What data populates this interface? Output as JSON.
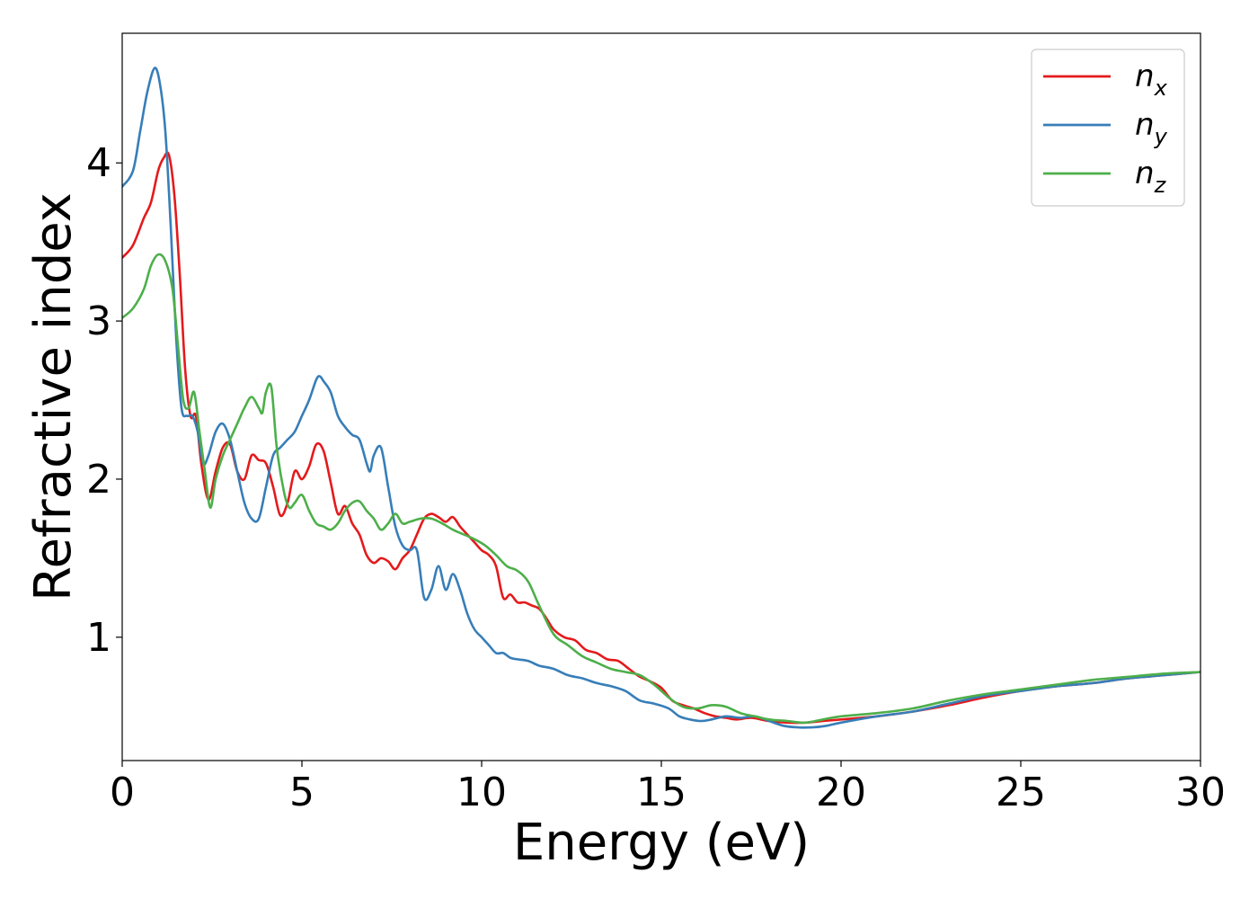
{
  "chart_data": {
    "type": "line",
    "title": "",
    "xlabel": "Energy (eV)",
    "ylabel": "Refractive index",
    "xlim": [
      0,
      30
    ],
    "ylim": [
      0.22,
      4.82
    ],
    "xticks": [
      0,
      5,
      10,
      15,
      20,
      25,
      30
    ],
    "yticks": [
      1,
      2,
      3,
      4
    ],
    "grid": false,
    "legend_position": "top-right",
    "series": [
      {
        "name": "n_x",
        "label_base": "n",
        "label_sub": "x",
        "color": "#e41a1c",
        "x": [
          0,
          0.3,
          0.6,
          0.8,
          1.0,
          1.15,
          1.3,
          1.45,
          1.6,
          1.75,
          1.9,
          2.05,
          2.2,
          2.4,
          2.6,
          2.8,
          3.0,
          3.2,
          3.4,
          3.6,
          3.8,
          4.0,
          4.2,
          4.4,
          4.6,
          4.8,
          5.0,
          5.2,
          5.4,
          5.6,
          5.8,
          6.0,
          6.2,
          6.4,
          6.6,
          6.8,
          7.0,
          7.2,
          7.4,
          7.6,
          7.8,
          8.0,
          8.2,
          8.4,
          8.6,
          8.8,
          9.0,
          9.2,
          9.4,
          9.6,
          9.8,
          10.0,
          10.2,
          10.4,
          10.6,
          10.8,
          11.0,
          11.2,
          11.4,
          11.6,
          11.8,
          12.0,
          12.3,
          12.6,
          12.9,
          13.2,
          13.5,
          13.8,
          14.1,
          14.4,
          14.7,
          15.0,
          15.3,
          15.6,
          15.9,
          16.2,
          16.5,
          16.8,
          17.1,
          17.5,
          18.0,
          18.5,
          19.0,
          19.5,
          20.0,
          21.0,
          22.0,
          23.0,
          24.0,
          25.0,
          26.0,
          27.0,
          28.0,
          29.0,
          30.0
        ],
        "y": [
          3.4,
          3.48,
          3.65,
          3.75,
          3.95,
          4.03,
          4.05,
          3.8,
          3.3,
          2.7,
          2.4,
          2.4,
          2.1,
          1.87,
          2.05,
          2.2,
          2.22,
          2.05,
          2.0,
          2.15,
          2.12,
          2.1,
          1.95,
          1.77,
          1.85,
          2.05,
          2.0,
          2.08,
          2.22,
          2.18,
          1.98,
          1.78,
          1.83,
          1.72,
          1.65,
          1.52,
          1.47,
          1.5,
          1.48,
          1.43,
          1.5,
          1.55,
          1.65,
          1.75,
          1.78,
          1.76,
          1.73,
          1.76,
          1.7,
          1.65,
          1.6,
          1.55,
          1.52,
          1.45,
          1.25,
          1.27,
          1.22,
          1.22,
          1.2,
          1.18,
          1.12,
          1.05,
          1.0,
          0.98,
          0.92,
          0.9,
          0.86,
          0.85,
          0.8,
          0.75,
          0.72,
          0.68,
          0.6,
          0.57,
          0.55,
          0.52,
          0.5,
          0.49,
          0.48,
          0.49,
          0.47,
          0.46,
          0.46,
          0.47,
          0.48,
          0.5,
          0.53,
          0.57,
          0.62,
          0.66,
          0.69,
          0.71,
          0.74,
          0.76,
          0.78
        ]
      },
      {
        "name": "n_y",
        "label_base": "n",
        "label_sub": "y",
        "color": "#377eb8",
        "x": [
          0,
          0.3,
          0.5,
          0.7,
          0.9,
          1.05,
          1.2,
          1.35,
          1.5,
          1.65,
          1.8,
          1.95,
          2.1,
          2.25,
          2.4,
          2.6,
          2.8,
          3.0,
          3.2,
          3.4,
          3.6,
          3.8,
          4.0,
          4.2,
          4.4,
          4.6,
          4.8,
          5.0,
          5.2,
          5.4,
          5.5,
          5.6,
          5.8,
          6.0,
          6.2,
          6.4,
          6.6,
          6.8,
          6.9,
          7.0,
          7.2,
          7.4,
          7.6,
          7.8,
          8.0,
          8.2,
          8.4,
          8.6,
          8.8,
          9.0,
          9.2,
          9.4,
          9.6,
          9.8,
          10.0,
          10.2,
          10.4,
          10.6,
          10.8,
          11.0,
          11.3,
          11.6,
          12.0,
          12.4,
          12.8,
          13.2,
          13.6,
          14.0,
          14.4,
          14.8,
          15.2,
          15.5,
          15.8,
          16.1,
          16.4,
          16.8,
          17.2,
          17.6,
          18.0,
          18.4,
          18.8,
          19.2,
          19.6,
          20.0,
          21.0,
          22.0,
          23.0,
          24.0,
          25.0,
          26.0,
          27.0,
          28.0,
          29.0,
          30.0
        ],
        "y": [
          3.85,
          3.95,
          4.2,
          4.45,
          4.6,
          4.5,
          4.2,
          3.6,
          2.9,
          2.45,
          2.4,
          2.4,
          2.3,
          2.1,
          2.15,
          2.3,
          2.35,
          2.25,
          2.05,
          1.85,
          1.75,
          1.75,
          1.95,
          2.15,
          2.2,
          2.25,
          2.3,
          2.4,
          2.5,
          2.63,
          2.65,
          2.62,
          2.55,
          2.4,
          2.33,
          2.28,
          2.25,
          2.1,
          2.05,
          2.15,
          2.2,
          1.95,
          1.7,
          1.58,
          1.55,
          1.55,
          1.25,
          1.3,
          1.45,
          1.3,
          1.4,
          1.3,
          1.15,
          1.05,
          1.0,
          0.95,
          0.9,
          0.9,
          0.87,
          0.86,
          0.85,
          0.82,
          0.8,
          0.76,
          0.74,
          0.71,
          0.69,
          0.66,
          0.6,
          0.58,
          0.55,
          0.5,
          0.48,
          0.47,
          0.48,
          0.5,
          0.49,
          0.5,
          0.47,
          0.44,
          0.43,
          0.43,
          0.44,
          0.46,
          0.5,
          0.53,
          0.58,
          0.63,
          0.66,
          0.69,
          0.71,
          0.74,
          0.76,
          0.78
        ]
      },
      {
        "name": "n_z",
        "label_base": "n",
        "label_sub": "z",
        "color": "#4daf4a",
        "x": [
          0,
          0.3,
          0.6,
          0.8,
          1.0,
          1.2,
          1.4,
          1.55,
          1.7,
          1.85,
          2.0,
          2.15,
          2.3,
          2.45,
          2.6,
          2.8,
          3.0,
          3.2,
          3.4,
          3.6,
          3.8,
          3.9,
          4.0,
          4.15,
          4.3,
          4.5,
          4.65,
          4.8,
          5.0,
          5.2,
          5.4,
          5.6,
          5.8,
          6.0,
          6.2,
          6.4,
          6.6,
          6.8,
          7.0,
          7.2,
          7.4,
          7.6,
          7.8,
          8.0,
          8.3,
          8.6,
          8.9,
          9.2,
          9.5,
          9.8,
          10.1,
          10.4,
          10.7,
          11.0,
          11.3,
          11.6,
          12.0,
          12.4,
          12.8,
          13.2,
          13.6,
          14.0,
          14.4,
          14.8,
          15.2,
          15.6,
          16.0,
          16.4,
          16.8,
          17.2,
          17.6,
          18.0,
          18.5,
          19.0,
          19.5,
          20.0,
          21.0,
          22.0,
          23.0,
          24.0,
          25.0,
          26.0,
          27.0,
          28.0,
          29.0,
          30.0
        ],
        "y": [
          3.02,
          3.08,
          3.2,
          3.35,
          3.42,
          3.38,
          3.2,
          2.85,
          2.5,
          2.45,
          2.55,
          2.3,
          2.05,
          1.82,
          2.0,
          2.15,
          2.25,
          2.35,
          2.45,
          2.52,
          2.45,
          2.42,
          2.55,
          2.58,
          2.2,
          1.92,
          1.82,
          1.85,
          1.9,
          1.8,
          1.72,
          1.7,
          1.68,
          1.72,
          1.8,
          1.85,
          1.86,
          1.8,
          1.75,
          1.68,
          1.72,
          1.78,
          1.72,
          1.73,
          1.75,
          1.75,
          1.72,
          1.68,
          1.65,
          1.62,
          1.58,
          1.52,
          1.45,
          1.42,
          1.35,
          1.2,
          1.02,
          0.95,
          0.88,
          0.84,
          0.8,
          0.78,
          0.76,
          0.7,
          0.62,
          0.56,
          0.55,
          0.57,
          0.56,
          0.52,
          0.5,
          0.48,
          0.47,
          0.46,
          0.48,
          0.5,
          0.52,
          0.55,
          0.6,
          0.64,
          0.67,
          0.7,
          0.73,
          0.75,
          0.77,
          0.78
        ]
      }
    ]
  }
}
